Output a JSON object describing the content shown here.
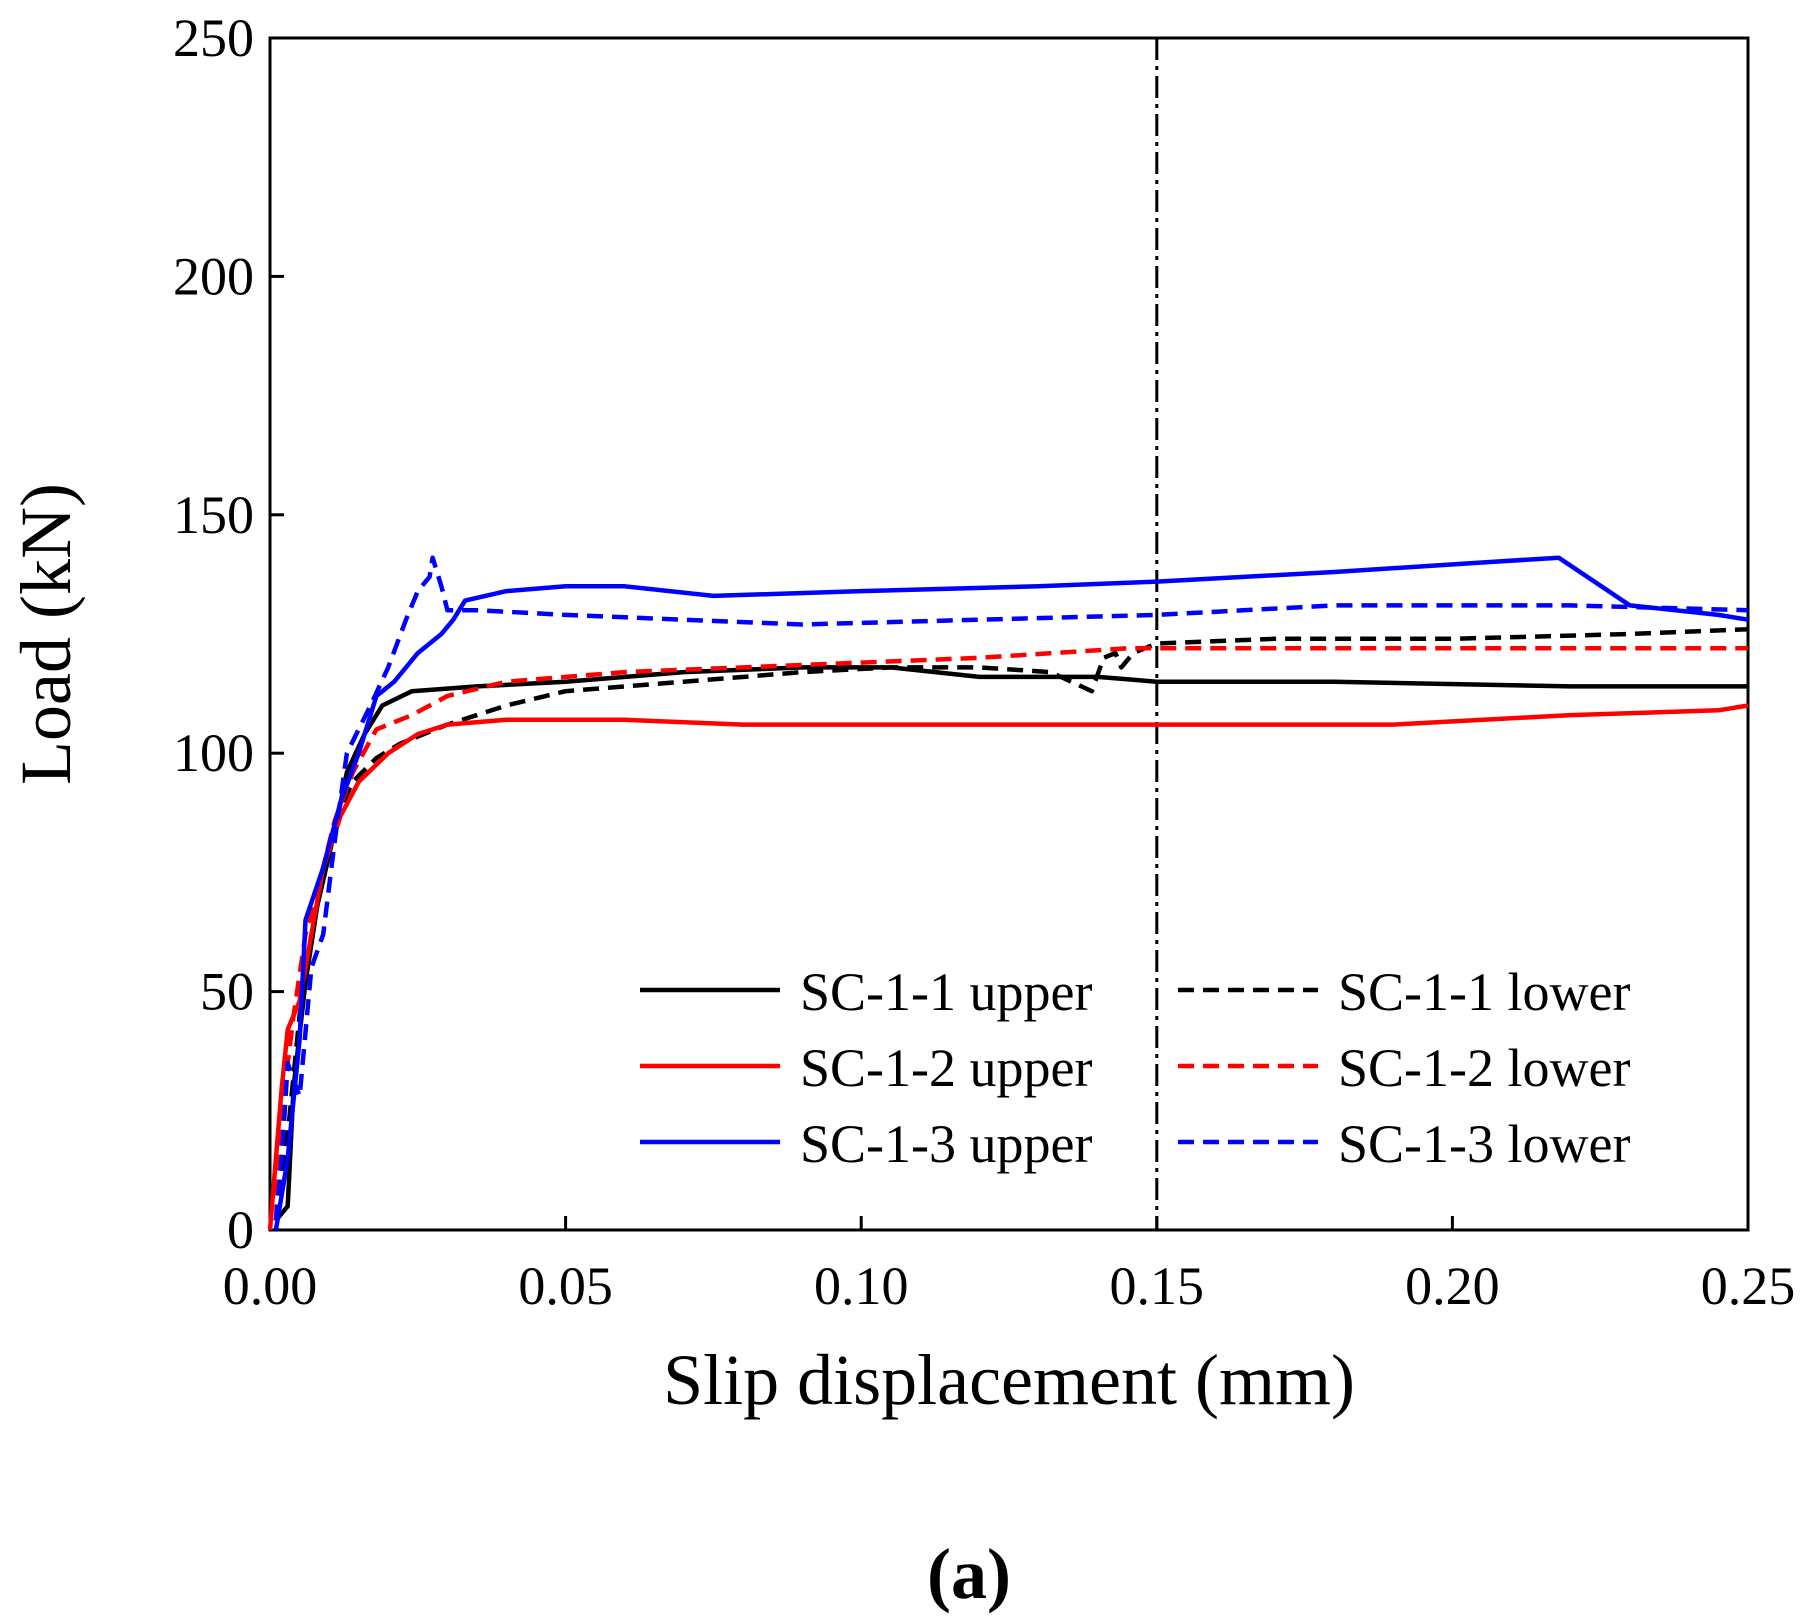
{
  "chart_data": {
    "type": "line",
    "title": "",
    "panel_label": "(a)",
    "xlabel": "Slip displacement (mm)",
    "ylabel": "Load (kN)",
    "xlim": [
      0,
      0.25
    ],
    "ylim": [
      0,
      250
    ],
    "xticks": [
      "0.00",
      "0.05",
      "0.10",
      "0.15",
      "0.20",
      "0.25"
    ],
    "yticks": [
      "0",
      "50",
      "100",
      "150",
      "200",
      "250"
    ],
    "grid": false,
    "legend_position": "bottom-right",
    "reference_line": {
      "x": 0.15,
      "style": "dash-dot",
      "color": "#000000"
    },
    "series": [
      {
        "name": "SC-1-1 upper",
        "color": "#000000",
        "dash": "solid",
        "x": [
          0.001,
          0.003,
          0.004,
          0.006,
          0.008,
          0.011,
          0.013,
          0.016,
          0.019,
          0.024,
          0.035,
          0.05,
          0.07,
          0.09,
          0.105,
          0.12,
          0.14,
          0.15,
          0.18,
          0.22,
          0.25
        ],
        "y": [
          2,
          5,
          30,
          52,
          68,
          84,
          96,
          104,
          110,
          113,
          114,
          115,
          117,
          118,
          118,
          116,
          116,
          115,
          115,
          114,
          114
        ]
      },
      {
        "name": "SC-1-1 lower",
        "color": "#000000",
        "dash": "dashed",
        "x": [
          0.001,
          0.003,
          0.005,
          0.007,
          0.009,
          0.011,
          0.014,
          0.018,
          0.022,
          0.03,
          0.04,
          0.05,
          0.07,
          0.09,
          0.105,
          0.12,
          0.132,
          0.139,
          0.141,
          0.143,
          0.144,
          0.146,
          0.15,
          0.17,
          0.2,
          0.23,
          0.25
        ],
        "y": [
          2,
          20,
          45,
          62,
          76,
          86,
          94,
          99,
          102,
          106,
          110,
          113,
          115,
          117,
          118,
          118,
          117,
          113,
          120,
          121,
          118,
          121,
          123,
          124,
          124,
          125,
          126
        ]
      },
      {
        "name": "SC-1-2 upper",
        "color": "#ff0000",
        "dash": "solid",
        "x": [
          0,
          0.001,
          0.002,
          0.003,
          0.005,
          0.007,
          0.009,
          0.012,
          0.015,
          0.02,
          0.025,
          0.03,
          0.04,
          0.06,
          0.08,
          0.1,
          0.13,
          0.15,
          0.19,
          0.22,
          0.245,
          0.25
        ],
        "y": [
          0,
          15,
          30,
          42,
          48,
          62,
          76,
          87,
          94,
          100,
          104,
          106,
          107,
          107,
          106,
          106,
          106,
          106,
          106,
          108,
          109,
          110
        ]
      },
      {
        "name": "SC-1-2 lower",
        "color": "#ff0000",
        "dash": "dashed",
        "x": [
          0.001,
          0.002,
          0.004,
          0.006,
          0.009,
          0.011,
          0.014,
          0.018,
          0.024,
          0.03,
          0.04,
          0.06,
          0.08,
          0.1,
          0.12,
          0.145,
          0.15,
          0.18,
          0.22,
          0.25
        ],
        "y": [
          2,
          25,
          45,
          62,
          76,
          86,
          96,
          105,
          108,
          112,
          115,
          117,
          118,
          119,
          120,
          122,
          122,
          122,
          122,
          122
        ]
      },
      {
        "name": "SC-1-3 upper",
        "color": "#0000ff",
        "dash": "solid",
        "x": [
          0.001,
          0.003,
          0.005,
          0.006,
          0.009,
          0.012,
          0.015,
          0.018,
          0.021,
          0.025,
          0.029,
          0.031,
          0.033,
          0.04,
          0.05,
          0.06,
          0.075,
          0.1,
          0.13,
          0.15,
          0.18,
          0.205,
          0.218,
          0.23,
          0.245,
          0.25
        ],
        "y": [
          0,
          15,
          40,
          65,
          76,
          90,
          100,
          112,
          115,
          121,
          125,
          128,
          132,
          134,
          135,
          135,
          133,
          134,
          135,
          136,
          138,
          140,
          141,
          131,
          129,
          128
        ]
      },
      {
        "name": "SC-1-3 lower",
        "color": "#0000ff",
        "dash": "dashed",
        "x": [
          0.001,
          0.002,
          0.003,
          0.005,
          0.007,
          0.009,
          0.011,
          0.013,
          0.017,
          0.02,
          0.023,
          0.025,
          0.027,
          0.0275,
          0.029,
          0.03,
          0.035,
          0.05,
          0.07,
          0.09,
          0.12,
          0.15,
          0.18,
          0.22,
          0.25
        ],
        "y": [
          2,
          15,
          35,
          28,
          55,
          62,
          82,
          100,
          110,
          118,
          128,
          134,
          137,
          141,
          135,
          130,
          130,
          129,
          128,
          127,
          128,
          129,
          131,
          131,
          130
        ]
      }
    ]
  }
}
